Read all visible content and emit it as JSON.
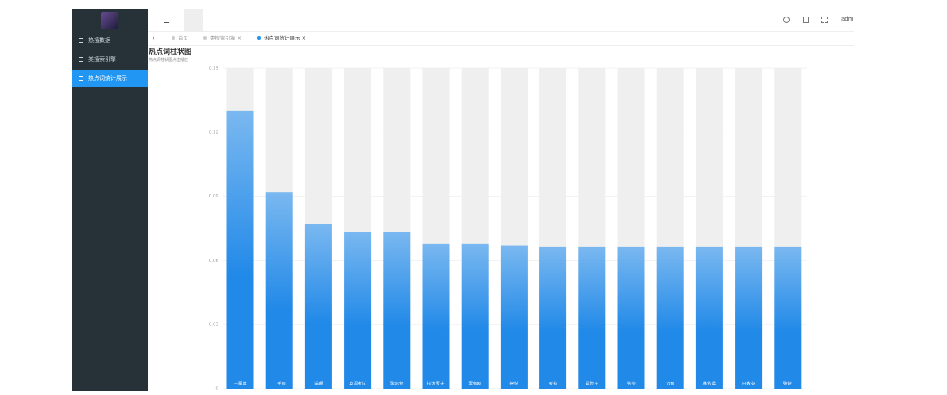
{
  "sidebar": {
    "menu": [
      "热搜数据",
      "类搜索引擎",
      "热点词统计展示"
    ]
  },
  "topbar": {
    "user": "admi"
  },
  "tabs": [
    "首页",
    "类搜索引擎",
    "热点词统计展示"
  ],
  "chart_data": {
    "type": "bar",
    "title": "热点词柱状图",
    "subtitle": "热点词柱状图点击播放",
    "categories": [
      "三星堆",
      "二手房",
      "猫眼",
      "英语考试",
      "瑞尔金",
      "拉大罗夫",
      "票房网",
      "德悦",
      "考拉",
      "冒险王",
      "张宗",
      "迈智",
      "林依晨",
      "白敬亭",
      "张楚"
    ],
    "values": [
      0.13,
      0.092,
      0.077,
      0.0735,
      0.0735,
      0.068,
      0.068,
      0.067,
      0.0665,
      0.0665,
      0.0665,
      0.0665,
      0.0665,
      0.0665,
      0.0665
    ],
    "color": "#2189e8",
    "ylim": [
      0,
      0.15
    ],
    "yticks": [
      0,
      0.03,
      0.06,
      0.09,
      0.12,
      0.15
    ],
    "grid": true
  }
}
